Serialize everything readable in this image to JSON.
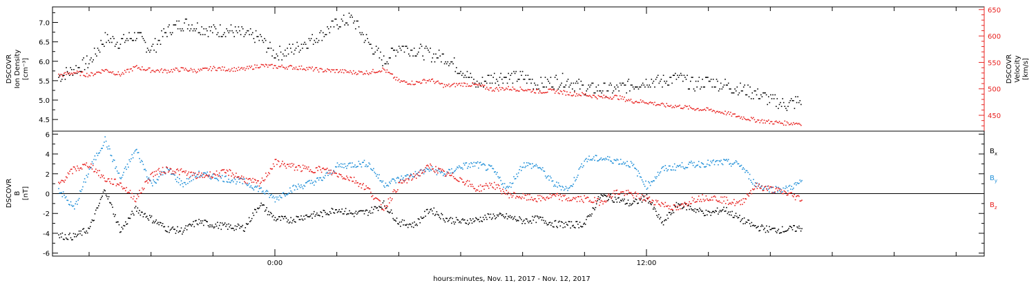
{
  "chart_data": [
    {
      "type": "scatter",
      "panel": "top",
      "ylabel_left": [
        "DSCOVR",
        "Ion Density",
        "[cm⁻³]"
      ],
      "ylabel_right": [
        "DSCOVR",
        "Velocity",
        "[km/s]"
      ],
      "ylim_left": [
        4.2,
        7.4
      ],
      "ylim_right": [
        420,
        655
      ],
      "yticks_left": [
        "4.5",
        "5.0",
        "5.5",
        "6.0",
        "6.5",
        "7.0"
      ],
      "yticks_right": [
        "450",
        "500",
        "550",
        "600",
        "650"
      ],
      "right_axis_color": "#e8201e",
      "series": [
        {
          "axis": "left",
          "color": "#000000",
          "x_hours": [
            -7.0,
            -6.5,
            -6.0,
            -5.5,
            -5.0,
            -4.5,
            -4.0,
            -3.5,
            -3.0,
            -2.5,
            -2.0,
            -1.5,
            -1.0,
            -0.5,
            0.0,
            0.5,
            1.0,
            1.5,
            2.0,
            2.5,
            3.0,
            3.5,
            4.0,
            4.5,
            5.0,
            5.5,
            6.0,
            6.5,
            7.0,
            7.5,
            8.0,
            8.5,
            9.0,
            9.5,
            10.0,
            10.5,
            11.0,
            11.5,
            12.0,
            12.5,
            13.0,
            13.5,
            14.0,
            14.5,
            15.0,
            15.5,
            16.0,
            16.5,
            17.0
          ],
          "values": [
            5.6,
            5.8,
            6.0,
            6.6,
            6.5,
            6.7,
            6.3,
            6.8,
            7.0,
            6.9,
            6.8,
            6.8,
            6.7,
            6.6,
            6.2,
            6.3,
            6.5,
            6.7,
            7.0,
            7.1,
            6.5,
            6.0,
            6.4,
            6.3,
            6.2,
            6.1,
            5.8,
            5.4,
            5.6,
            5.6,
            5.6,
            5.4,
            5.5,
            5.5,
            5.3,
            5.3,
            5.3,
            5.4,
            5.5,
            5.5,
            5.6,
            5.4,
            5.5,
            5.4,
            5.3,
            5.2,
            5.0,
            4.9,
            5.0
          ]
        },
        {
          "axis": "right",
          "color": "#e8201e",
          "x_hours": [
            -7.0,
            -6.5,
            -6.0,
            -5.5,
            -5.0,
            -4.5,
            -4.0,
            -3.5,
            -3.0,
            -2.5,
            -2.0,
            -1.5,
            -1.0,
            -0.5,
            0.0,
            0.5,
            1.0,
            1.5,
            2.0,
            2.5,
            3.0,
            3.5,
            4.0,
            4.5,
            5.0,
            5.5,
            6.0,
            6.5,
            7.0,
            7.5,
            8.0,
            8.5,
            9.0,
            9.5,
            10.0,
            10.5,
            11.0,
            11.5,
            12.0,
            12.5,
            13.0,
            13.5,
            14.0,
            14.5,
            15.0,
            15.5,
            16.0,
            16.5,
            17.0
          ],
          "values": [
            526,
            532,
            527,
            537,
            528,
            542,
            536,
            535,
            538,
            535,
            540,
            538,
            538,
            545,
            543,
            542,
            540,
            536,
            535,
            532,
            532,
            538,
            515,
            512,
            518,
            506,
            510,
            508,
            500,
            502,
            500,
            496,
            497,
            492,
            490,
            485,
            486,
            478,
            476,
            470,
            468,
            464,
            461,
            456,
            448,
            442,
            438,
            436,
            436
          ]
        }
      ]
    },
    {
      "type": "scatter",
      "panel": "bottom",
      "ylabel_left": [
        "DSCOVR",
        "B",
        "[nT]"
      ],
      "ylim": [
        -6.3,
        6.3
      ],
      "yticks": [
        "-6",
        "-4",
        "-2",
        "0",
        "2",
        "4",
        "6"
      ],
      "zero_line": true,
      "xticks": [
        "0:00",
        "12:00"
      ],
      "xlabel": "hours:minutes, Nov. 11, 2017 - Nov. 12, 2017",
      "series": [
        {
          "name": "B",
          "sub": "x",
          "color": "#000000",
          "x_hours": [
            -7.0,
            -6.5,
            -6.0,
            -5.5,
            -5.0,
            -4.5,
            -4.0,
            -3.5,
            -3.0,
            -2.5,
            -2.0,
            -1.5,
            -1.0,
            -0.5,
            0.0,
            0.5,
            1.0,
            1.5,
            2.0,
            2.5,
            3.0,
            3.5,
            4.0,
            4.5,
            5.0,
            5.5,
            6.0,
            6.5,
            7.0,
            7.5,
            8.0,
            8.5,
            9.0,
            9.5,
            10.0,
            10.5,
            11.0,
            11.5,
            12.0,
            12.5,
            13.0,
            13.5,
            14.0,
            14.5,
            15.0,
            15.5,
            16.0,
            16.5,
            17.0
          ],
          "values": [
            -4.2,
            -4.3,
            -3.5,
            0.5,
            -3.7,
            -1.5,
            -2.5,
            -3.5,
            -3.7,
            -2.8,
            -3.1,
            -3.3,
            -3.4,
            -1.0,
            -2.5,
            -2.6,
            -2.2,
            -2.0,
            -1.5,
            -2.0,
            -1.8,
            -1.0,
            -2.9,
            -3.1,
            -1.5,
            -2.5,
            -2.8,
            -2.6,
            -2.2,
            -2.3,
            -2.7,
            -2.5,
            -3.0,
            -3.1,
            -3.0,
            -0.2,
            -0.5,
            -1.0,
            -0.3,
            -3.0,
            -1.0,
            -1.5,
            -2.0,
            -1.5,
            -2.5,
            -3.3,
            -3.6,
            -3.6,
            -3.4
          ]
        },
        {
          "name": "B",
          "sub": "y",
          "color": "#1f8fd8",
          "x_hours": [
            -7.0,
            -6.5,
            -6.0,
            -5.5,
            -5.0,
            -4.5,
            -4.0,
            -3.5,
            -3.0,
            -2.5,
            -2.0,
            -1.5,
            -1.0,
            -0.5,
            0.0,
            0.5,
            1.0,
            1.5,
            2.0,
            2.5,
            3.0,
            3.5,
            4.0,
            4.5,
            5.0,
            5.5,
            6.0,
            6.5,
            7.0,
            7.5,
            8.0,
            8.5,
            9.0,
            9.5,
            10.0,
            10.5,
            11.0,
            11.5,
            12.0,
            12.5,
            13.0,
            13.5,
            14.0,
            14.5,
            15.0,
            15.5,
            16.0,
            16.5,
            17.0
          ],
          "values": [
            0.5,
            -1.5,
            2.5,
            5.5,
            1.5,
            4.5,
            1.0,
            2.5,
            1.0,
            2.0,
            1.8,
            1.5,
            1.2,
            0.5,
            -0.5,
            0.5,
            1.0,
            1.5,
            2.8,
            3.0,
            3.1,
            1.0,
            1.5,
            2.0,
            2.5,
            2.0,
            2.8,
            3.0,
            2.5,
            0.5,
            3.0,
            2.8,
            1.0,
            0.5,
            3.5,
            3.6,
            3.4,
            3.0,
            0.8,
            2.5,
            2.8,
            3.0,
            3.1,
            3.2,
            3.0,
            1.0,
            0.5,
            0.5,
            1.2
          ]
        },
        {
          "name": "B",
          "sub": "z",
          "color": "#e8201e",
          "x_hours": [
            -7.0,
            -6.5,
            -6.0,
            -5.5,
            -5.0,
            -4.5,
            -4.0,
            -3.5,
            -3.0,
            -2.5,
            -2.0,
            -1.5,
            -1.0,
            -0.5,
            0.0,
            0.5,
            1.0,
            1.5,
            2.0,
            2.5,
            3.0,
            3.5,
            4.0,
            4.5,
            5.0,
            5.5,
            6.0,
            6.5,
            7.0,
            7.5,
            8.0,
            8.5,
            9.0,
            9.5,
            10.0,
            10.5,
            11.0,
            11.5,
            12.0,
            12.5,
            13.0,
            13.5,
            14.0,
            14.5,
            15.0,
            15.5,
            16.0,
            16.5,
            17.0
          ],
          "values": [
            1.0,
            2.5,
            3.0,
            1.5,
            1.0,
            -0.5,
            2.0,
            2.5,
            2.2,
            1.8,
            2.0,
            2.2,
            1.5,
            1.0,
            3.2,
            2.8,
            2.5,
            2.5,
            2.0,
            1.5,
            0.5,
            -1.5,
            1.0,
            1.8,
            2.8,
            2.0,
            1.5,
            0.5,
            1.0,
            0.0,
            -0.3,
            -0.5,
            -0.2,
            -0.5,
            -0.5,
            -0.8,
            0.2,
            0.0,
            -0.5,
            -1.0,
            -1.5,
            -0.5,
            -0.3,
            -0.6,
            -1.0,
            0.8,
            0.5,
            0.1,
            -0.5
          ]
        }
      ]
    }
  ]
}
